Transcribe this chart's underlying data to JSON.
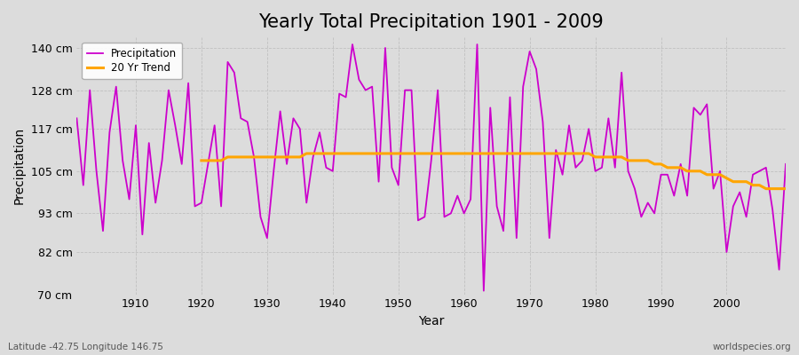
{
  "title": "Yearly Total Precipitation 1901 - 2009",
  "xlabel": "Year",
  "ylabel": "Precipitation",
  "lat_lon_text": "Latitude -42.75 Longitude 146.75",
  "watermark": "worldspecies.org",
  "years": [
    1901,
    1902,
    1903,
    1904,
    1905,
    1906,
    1907,
    1908,
    1909,
    1910,
    1911,
    1912,
    1913,
    1914,
    1915,
    1916,
    1917,
    1918,
    1919,
    1920,
    1921,
    1922,
    1923,
    1924,
    1925,
    1926,
    1927,
    1928,
    1929,
    1930,
    1931,
    1932,
    1933,
    1934,
    1935,
    1936,
    1937,
    1938,
    1939,
    1940,
    1941,
    1942,
    1943,
    1944,
    1945,
    1946,
    1947,
    1948,
    1949,
    1950,
    1951,
    1952,
    1953,
    1954,
    1955,
    1956,
    1957,
    1958,
    1959,
    1960,
    1961,
    1962,
    1963,
    1964,
    1965,
    1966,
    1967,
    1968,
    1969,
    1970,
    1971,
    1972,
    1973,
    1974,
    1975,
    1976,
    1977,
    1978,
    1979,
    1980,
    1981,
    1982,
    1983,
    1984,
    1985,
    1986,
    1987,
    1988,
    1989,
    1990,
    1991,
    1992,
    1993,
    1994,
    1995,
    1996,
    1997,
    1998,
    1999,
    2000,
    2001,
    2002,
    2003,
    2004,
    2005,
    2006,
    2007,
    2008,
    2009
  ],
  "precipitation": [
    120,
    101,
    128,
    105,
    88,
    116,
    129,
    108,
    97,
    118,
    87,
    113,
    96,
    108,
    128,
    118,
    107,
    130,
    95,
    96,
    107,
    118,
    95,
    136,
    133,
    120,
    119,
    109,
    92,
    86,
    105,
    122,
    107,
    120,
    117,
    96,
    109,
    116,
    106,
    105,
    127,
    126,
    141,
    131,
    128,
    129,
    102,
    140,
    106,
    101,
    128,
    128,
    91,
    92,
    108,
    128,
    92,
    93,
    98,
    93,
    97,
    141,
    71,
    123,
    95,
    88,
    126,
    86,
    129,
    139,
    134,
    119,
    86,
    111,
    104,
    118,
    106,
    108,
    117,
    105,
    106,
    120,
    106,
    133,
    105,
    100,
    92,
    96,
    93,
    104,
    104,
    98,
    107,
    98,
    123,
    121,
    124,
    100,
    105,
    82,
    95,
    99,
    92,
    104,
    105,
    106,
    94,
    77,
    107
  ],
  "trend": [
    null,
    null,
    null,
    null,
    null,
    null,
    null,
    null,
    null,
    null,
    null,
    null,
    null,
    null,
    null,
    null,
    null,
    null,
    null,
    108,
    108,
    108,
    108,
    109,
    109,
    109,
    109,
    109,
    109,
    109,
    109,
    109,
    109,
    109,
    109,
    110,
    110,
    110,
    110,
    110,
    110,
    110,
    110,
    110,
    110,
    110,
    110,
    110,
    110,
    110,
    110,
    110,
    110,
    110,
    110,
    110,
    110,
    110,
    110,
    110,
    110,
    110,
    110,
    110,
    110,
    110,
    110,
    110,
    110,
    110,
    110,
    110,
    110,
    110,
    110,
    110,
    110,
    110,
    110,
    109,
    109,
    109,
    109,
    109,
    108,
    108,
    108,
    108,
    107,
    107,
    106,
    106,
    106,
    105,
    105,
    105,
    104,
    104,
    104,
    103,
    102,
    102,
    102,
    101,
    101,
    100,
    100,
    100,
    100
  ],
  "precipitation_color": "#CC00CC",
  "trend_color": "#FFA500",
  "background_color": "#DCDCDC",
  "plot_bg_color": "#DCDCDC",
  "grid_color": "#C0C0C0",
  "title_fontsize": 15,
  "axis_label_fontsize": 10,
  "tick_label_fontsize": 9,
  "ylim": [
    70,
    143
  ],
  "yticks": [
    70,
    82,
    93,
    105,
    117,
    128,
    140
  ],
  "ytick_labels": [
    "70 cm",
    "82 cm",
    "93 cm",
    "105 cm",
    "117 cm",
    "128 cm",
    "140 cm"
  ],
  "xticks": [
    1910,
    1920,
    1930,
    1940,
    1950,
    1960,
    1970,
    1980,
    1990,
    2000
  ],
  "xlim": [
    1901,
    2009
  ],
  "legend_loc": "upper left"
}
